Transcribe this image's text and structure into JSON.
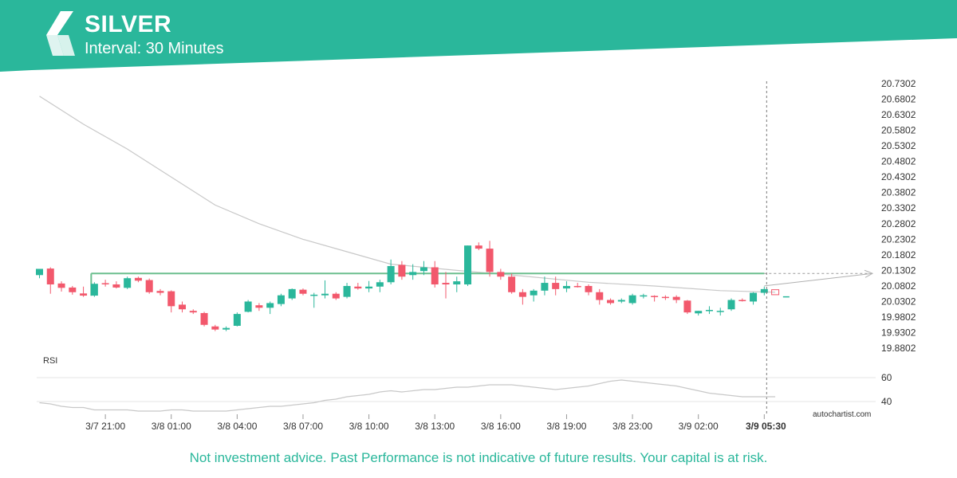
{
  "header": {
    "title": "SILVER",
    "subtitle": "Interval: 30 Minutes",
    "color": "#2ab79b"
  },
  "footer": {
    "disclaimer": "Not investment advice. Past Performance is not indicative of future results. Your capital is at risk.",
    "brand": "autochartist.com"
  },
  "chart_data": {
    "type": "candlestick",
    "y_ticks": [
      "20.7302",
      "20.6802",
      "20.6302",
      "20.5802",
      "20.5302",
      "20.4802",
      "20.4302",
      "20.3802",
      "20.3302",
      "20.2802",
      "20.2302",
      "20.1802",
      "20.1302",
      "20.0802",
      "20.0302",
      "19.9802",
      "19.9302",
      "19.8802"
    ],
    "ylim": [
      19.8802,
      20.7302
    ],
    "x_ticks": [
      "3/7 21:00",
      "3/8 01:00",
      "3/8 04:00",
      "3/8 07:00",
      "3/8 10:00",
      "3/8 13:00",
      "3/8 16:00",
      "3/8 19:00",
      "3/8 23:00",
      "3/9 02:00",
      "3/9 05:30"
    ],
    "x_tick_candle_index": [
      6,
      12,
      18,
      24,
      30,
      36,
      42,
      48,
      54,
      60,
      66
    ],
    "up_color": "#2ab79b",
    "down_color": "#f2586c",
    "candles": [
      {
        "o": 20.115,
        "h": 20.13,
        "l": 20.105,
        "c": 20.135
      },
      {
        "o": 20.136,
        "h": 20.14,
        "l": 20.055,
        "c": 20.085
      },
      {
        "o": 20.088,
        "h": 20.095,
        "l": 20.062,
        "c": 20.074
      },
      {
        "o": 20.075,
        "h": 20.08,
        "l": 20.052,
        "c": 20.06
      },
      {
        "o": 20.056,
        "h": 20.078,
        "l": 20.045,
        "c": 20.049
      },
      {
        "o": 20.049,
        "h": 20.092,
        "l": 20.045,
        "c": 20.087
      },
      {
        "o": 20.089,
        "h": 20.1,
        "l": 20.078,
        "c": 20.088
      },
      {
        "o": 20.085,
        "h": 20.095,
        "l": 20.072,
        "c": 20.075
      },
      {
        "o": 20.074,
        "h": 20.11,
        "l": 20.07,
        "c": 20.105
      },
      {
        "o": 20.106,
        "h": 20.11,
        "l": 20.092,
        "c": 20.097
      },
      {
        "o": 20.099,
        "h": 20.104,
        "l": 20.055,
        "c": 20.06
      },
      {
        "o": 20.064,
        "h": 20.07,
        "l": 20.05,
        "c": 20.058
      },
      {
        "o": 20.063,
        "h": 20.066,
        "l": 19.995,
        "c": 20.015
      },
      {
        "o": 20.02,
        "h": 20.03,
        "l": 19.995,
        "c": 20.005
      },
      {
        "o": 20.0,
        "h": 20.005,
        "l": 19.99,
        "c": 19.995
      },
      {
        "o": 19.993,
        "h": 19.997,
        "l": 19.95,
        "c": 19.955
      },
      {
        "o": 19.95,
        "h": 19.955,
        "l": 19.935,
        "c": 19.94
      },
      {
        "o": 19.94,
        "h": 19.95,
        "l": 19.935,
        "c": 19.945
      },
      {
        "o": 19.952,
        "h": 19.995,
        "l": 19.95,
        "c": 19.99
      },
      {
        "o": 19.997,
        "h": 20.035,
        "l": 19.995,
        "c": 20.03
      },
      {
        "o": 20.018,
        "h": 20.025,
        "l": 20.0,
        "c": 20.01
      },
      {
        "o": 20.01,
        "h": 20.03,
        "l": 19.99,
        "c": 20.025
      },
      {
        "o": 20.022,
        "h": 20.055,
        "l": 20.015,
        "c": 20.05
      },
      {
        "o": 20.04,
        "h": 20.072,
        "l": 20.035,
        "c": 20.07
      },
      {
        "o": 20.068,
        "h": 20.072,
        "l": 20.05,
        "c": 20.055
      },
      {
        "o": 20.05,
        "h": 20.058,
        "l": 20.01,
        "c": 20.052
      },
      {
        "o": 20.05,
        "h": 20.098,
        "l": 20.04,
        "c": 20.055
      },
      {
        "o": 20.055,
        "h": 20.06,
        "l": 20.035,
        "c": 20.04
      },
      {
        "o": 20.045,
        "h": 20.09,
        "l": 20.04,
        "c": 20.08
      },
      {
        "o": 20.078,
        "h": 20.09,
        "l": 20.068,
        "c": 20.072
      },
      {
        "o": 20.072,
        "h": 20.096,
        "l": 20.06,
        "c": 20.078
      },
      {
        "o": 20.078,
        "h": 20.1,
        "l": 20.06,
        "c": 20.092
      },
      {
        "o": 20.092,
        "h": 20.165,
        "l": 20.085,
        "c": 20.144
      },
      {
        "o": 20.148,
        "h": 20.16,
        "l": 20.1,
        "c": 20.11
      },
      {
        "o": 20.115,
        "h": 20.15,
        "l": 20.1,
        "c": 20.125
      },
      {
        "o": 20.128,
        "h": 20.16,
        "l": 20.115,
        "c": 20.14
      },
      {
        "o": 20.14,
        "h": 20.16,
        "l": 20.075,
        "c": 20.085
      },
      {
        "o": 20.09,
        "h": 20.125,
        "l": 20.04,
        "c": 20.085
      },
      {
        "o": 20.085,
        "h": 20.11,
        "l": 20.06,
        "c": 20.095
      },
      {
        "o": 20.085,
        "h": 20.21,
        "l": 20.08,
        "c": 20.21
      },
      {
        "o": 20.21,
        "h": 20.22,
        "l": 20.195,
        "c": 20.2
      },
      {
        "o": 20.2,
        "h": 20.225,
        "l": 20.11,
        "c": 20.125
      },
      {
        "o": 20.125,
        "h": 20.135,
        "l": 20.1,
        "c": 20.11
      },
      {
        "o": 20.11,
        "h": 20.12,
        "l": 20.055,
        "c": 20.06
      },
      {
        "o": 20.06,
        "h": 20.07,
        "l": 20.02,
        "c": 20.045
      },
      {
        "o": 20.05,
        "h": 20.07,
        "l": 20.03,
        "c": 20.065
      },
      {
        "o": 20.065,
        "h": 20.11,
        "l": 20.05,
        "c": 20.09
      },
      {
        "o": 20.09,
        "h": 20.11,
        "l": 20.05,
        "c": 20.07
      },
      {
        "o": 20.072,
        "h": 20.095,
        "l": 20.06,
        "c": 20.08
      },
      {
        "o": 20.08,
        "h": 20.09,
        "l": 20.075,
        "c": 20.078
      },
      {
        "o": 20.08,
        "h": 20.085,
        "l": 20.05,
        "c": 20.06
      },
      {
        "o": 20.06,
        "h": 20.07,
        "l": 20.02,
        "c": 20.035
      },
      {
        "o": 20.035,
        "h": 20.04,
        "l": 20.02,
        "c": 20.025
      },
      {
        "o": 20.03,
        "h": 20.04,
        "l": 20.025,
        "c": 20.035
      },
      {
        "o": 20.025,
        "h": 20.055,
        "l": 20.02,
        "c": 20.05
      },
      {
        "o": 20.048,
        "h": 20.055,
        "l": 20.04,
        "c": 20.05
      },
      {
        "o": 20.048,
        "h": 20.05,
        "l": 20.03,
        "c": 20.045
      },
      {
        "o": 20.045,
        "h": 20.05,
        "l": 20.035,
        "c": 20.043
      },
      {
        "o": 20.045,
        "h": 20.05,
        "l": 20.025,
        "c": 20.035
      },
      {
        "o": 20.033,
        "h": 20.035,
        "l": 19.99,
        "c": 19.995
      },
      {
        "o": 19.992,
        "h": 20.0,
        "l": 19.985,
        "c": 20.0
      },
      {
        "o": 20.003,
        "h": 20.015,
        "l": 19.99,
        "c": 20.003
      },
      {
        "o": 20.0,
        "h": 20.01,
        "l": 19.985,
        "c": 20.0
      },
      {
        "o": 20.005,
        "h": 20.04,
        "l": 20.0,
        "c": 20.035
      },
      {
        "o": 20.035,
        "h": 20.04,
        "l": 20.03,
        "c": 20.033
      },
      {
        "o": 20.03,
        "h": 20.06,
        "l": 20.02,
        "c": 20.058
      },
      {
        "o": 20.058,
        "h": 20.078,
        "l": 20.05,
        "c": 20.07
      }
    ],
    "moving_average": {
      "color": "#c8c8c8",
      "points": [
        [
          0,
          20.69
        ],
        [
          4,
          20.6
        ],
        [
          8,
          20.52
        ],
        [
          12,
          20.43
        ],
        [
          16,
          20.34
        ],
        [
          20,
          20.28
        ],
        [
          24,
          20.23
        ],
        [
          28,
          20.19
        ],
        [
          32,
          20.15
        ],
        [
          38,
          20.13
        ],
        [
          44,
          20.112
        ],
        [
          50,
          20.092
        ],
        [
          56,
          20.08
        ],
        [
          62,
          20.065
        ],
        [
          67,
          20.06
        ]
      ]
    },
    "level_line": {
      "value": 20.1202,
      "start_index": 5,
      "color": "#6bbf8e"
    },
    "projection": {
      "ghost_candle": {
        "o": 20.068,
        "c": 20.052,
        "h": 20.07,
        "l": 20.045
      },
      "arrow_end_value": 20.1202
    },
    "current_time_marker_index": 66,
    "rsi": {
      "label": "RSI",
      "y_ticks": [
        "60",
        "40"
      ],
      "ylim": [
        20,
        80
      ],
      "values": [
        39,
        38,
        36,
        35,
        35,
        33,
        33,
        33,
        33,
        32,
        32,
        32,
        33,
        33,
        32,
        32,
        32,
        32,
        33,
        34,
        35,
        36,
        36,
        37,
        38,
        39,
        41,
        42,
        44,
        45,
        46,
        48,
        49,
        48,
        49,
        50,
        50,
        51,
        52,
        52,
        53,
        54,
        54,
        54,
        53,
        52,
        51,
        50,
        51,
        52,
        53,
        55,
        57,
        58,
        57,
        56,
        55,
        54,
        53,
        51,
        49,
        47,
        46,
        45,
        44,
        44,
        44,
        44
      ]
    }
  }
}
